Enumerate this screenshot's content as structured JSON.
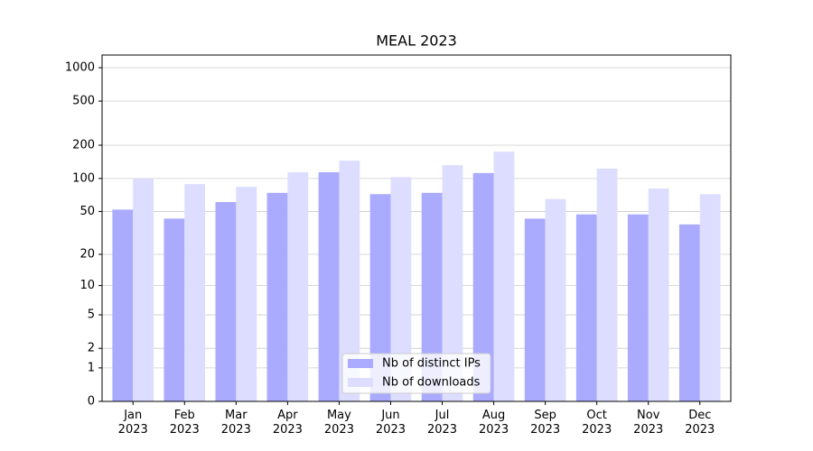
{
  "chart_data": {
    "type": "bar",
    "title": "MEAL 2023",
    "categories": [
      "Jan\n2023",
      "Feb\n2023",
      "Mar\n2023",
      "Apr\n2023",
      "May\n2023",
      "Jun\n2023",
      "Jul\n2023",
      "Aug\n2023",
      "Sep\n2023",
      "Oct\n2023",
      "Nov\n2023",
      "Dec\n2023"
    ],
    "series": [
      {
        "name": "Nb of distinct IPs",
        "color": "#aaaaff",
        "values": [
          52,
          43,
          61,
          74,
          114,
          72,
          74,
          112,
          43,
          47,
          47,
          38
        ]
      },
      {
        "name": "Nb of downloads",
        "color": "#ddddff",
        "values": [
          100,
          89,
          84,
          114,
          145,
          103,
          132,
          175,
          65,
          123,
          81,
          72
        ]
      }
    ],
    "yscale": "log1p",
    "ylim": [
      0,
      1300
    ],
    "yticks": [
      0,
      1,
      2,
      5,
      10,
      20,
      50,
      100,
      200,
      500,
      1000
    ],
    "grid": true,
    "legend": "lower center"
  }
}
